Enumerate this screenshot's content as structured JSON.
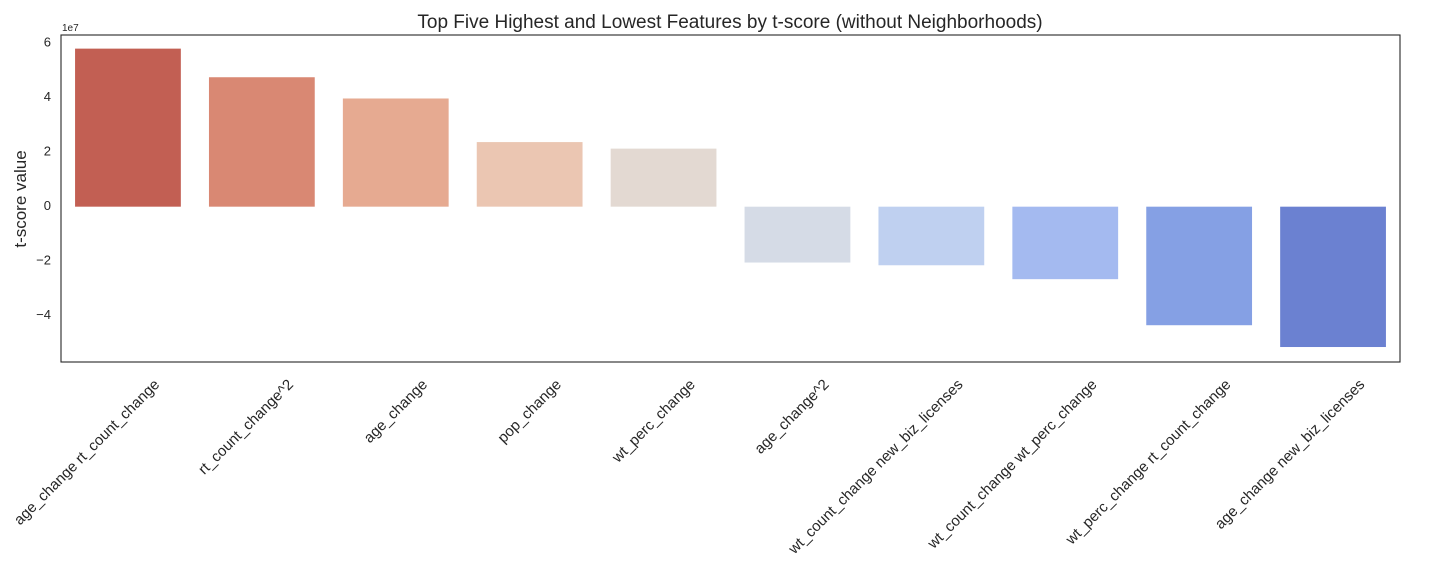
{
  "chart_data": {
    "type": "bar",
    "title": "Top Five Highest and Lowest Features by t-score (without Neighborhoods)",
    "xlabel": "",
    "ylabel": "t-score value",
    "y_offset_label": "1e7",
    "y_scale": 10000000,
    "ylim": [
      -5.7,
      6.3
    ],
    "yticks": [
      -4,
      -2,
      0,
      2,
      4,
      6
    ],
    "ytick_labels": [
      "−4",
      "−2",
      "0",
      "2",
      "4",
      "6"
    ],
    "grid": false,
    "categories": [
      "age_change rt_count_change",
      "rt_count_change^2",
      "age_change",
      "pop_change",
      "wt_perc_change",
      "age_change^2",
      "wt_count_change new_biz_licenses",
      "wt_count_change wt_perc_change",
      "wt_perc_change rt_count_change",
      "age_change new_biz_licenses"
    ],
    "values": [
      58000000,
      47500000,
      39700000,
      23700000,
      21300000,
      -20500000,
      -21500000,
      -26600000,
      -43500000,
      -51500000
    ],
    "colors": [
      "#c25f53",
      "#d98873",
      "#e6aa91",
      "#ebc6b2",
      "#e3d9d2",
      "#d5dbe6",
      "#bfd0f0",
      "#a4baf0",
      "#85a0e4",
      "#6b81d1"
    ]
  }
}
